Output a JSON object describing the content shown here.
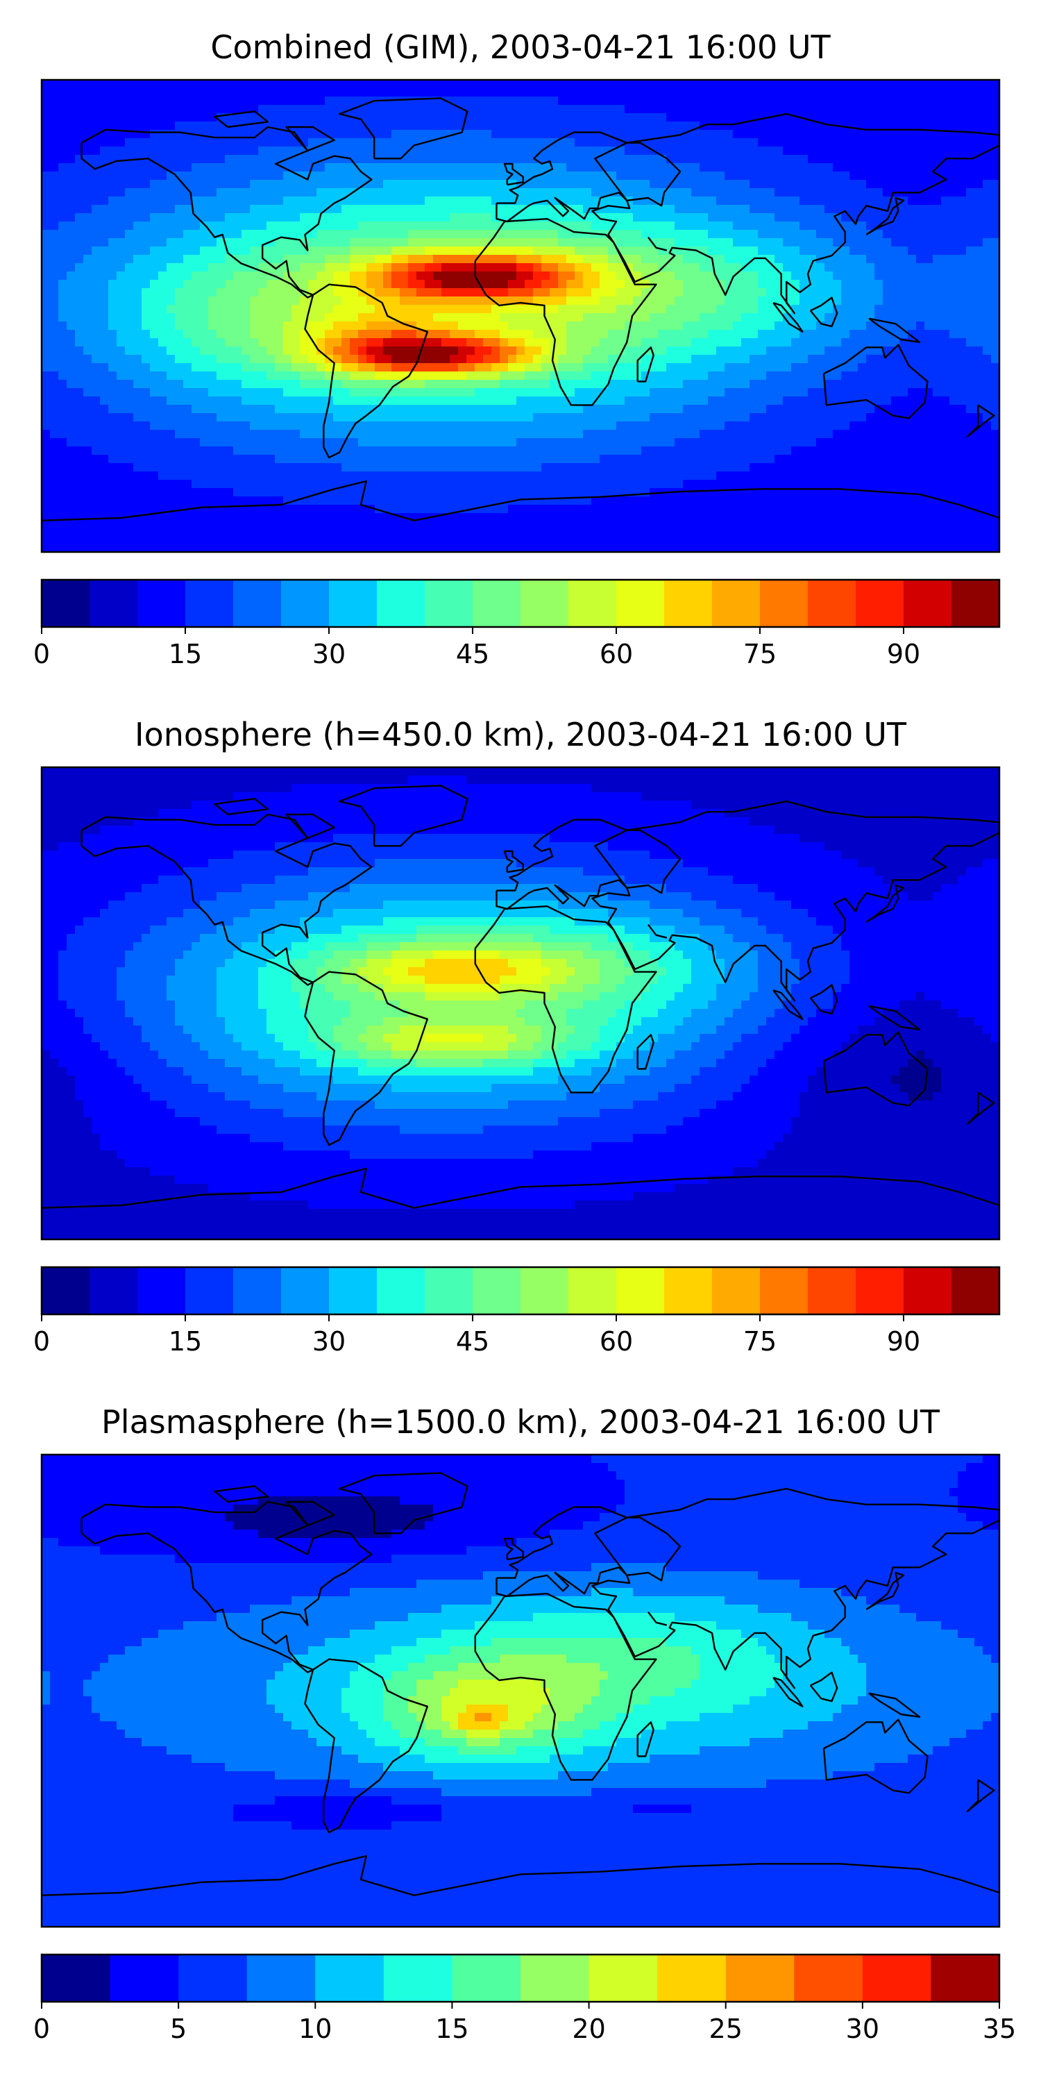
{
  "figure": {
    "panels": [
      {
        "id": "combined",
        "title": "Combined (GIM), 2003-04-21 16:00 UT",
        "colorbar": {
          "min": 0,
          "max": 100,
          "step": 5,
          "ticks": [
            0,
            15,
            30,
            45,
            60,
            75,
            90
          ]
        },
        "blobs": [
          {
            "lon": -30,
            "lat": 5,
            "rlon": 130,
            "rlat": 55,
            "v": 40
          },
          {
            "lon": -18,
            "lat": 15,
            "rlon": 40,
            "rlat": 9,
            "v": 48
          },
          {
            "lon": -30,
            "lat": -15,
            "rlon": 38,
            "rlat": 8,
            "v": 45
          },
          {
            "lon": -55,
            "lat": -10,
            "rlon": 30,
            "rlat": 14,
            "v": 18
          },
          {
            "lon": 60,
            "lat": 10,
            "rlon": 90,
            "rlat": 25,
            "v": 15
          },
          {
            "lon": -110,
            "lat": 0,
            "rlon": 45,
            "rlat": 25,
            "v": 10
          }
        ],
        "base": 10
      },
      {
        "id": "ionosphere",
        "title": "Ionosphere  (h=450.0 km), 2003-04-21 16:00 UT",
        "colorbar": {
          "min": 0,
          "max": 100,
          "step": 5,
          "ticks": [
            0,
            15,
            30,
            45,
            60,
            75,
            90
          ]
        },
        "blobs": [
          {
            "lon": -30,
            "lat": 3,
            "rlon": 115,
            "rlat": 48,
            "v": 38
          },
          {
            "lon": -25,
            "lat": 13,
            "rlon": 45,
            "rlat": 10,
            "v": 22
          },
          {
            "lon": -25,
            "lat": -15,
            "rlon": 45,
            "rlat": 9,
            "v": 20
          },
          {
            "lon": 40,
            "lat": 15,
            "rlon": 60,
            "rlat": 20,
            "v": 10
          },
          {
            "lon": 150,
            "lat": -25,
            "rlon": 60,
            "rlat": 25,
            "v": -6
          }
        ],
        "base": 8
      },
      {
        "id": "plasmasphere",
        "title": "Plasmasphere (h=1500.0 km), 2003-04-21 16:00 UT",
        "colorbar": {
          "min": 0,
          "max": 35,
          "step": 2.5,
          "ticks": [
            0,
            5,
            10,
            15,
            20,
            25,
            30,
            35
          ]
        },
        "blobs": [
          {
            "lon": 10,
            "lat": 0,
            "rlon": 170,
            "rlat": 40,
            "v": 7
          },
          {
            "lon": -15,
            "lat": -8,
            "rlon": 40,
            "rlat": 20,
            "v": 9
          },
          {
            "lon": -15,
            "lat": -12,
            "rlon": 10,
            "rlat": 5,
            "v": 5
          },
          {
            "lon": 40,
            "lat": 15,
            "rlon": 70,
            "rlat": 25,
            "v": 5
          },
          {
            "lon": -70,
            "lat": 65,
            "rlon": 70,
            "rlat": 15,
            "v": -4
          },
          {
            "lon": -60,
            "lat": -45,
            "rlon": 50,
            "rlat": 7,
            "v": -3
          },
          {
            "lon": 50,
            "lat": -45,
            "rlon": 40,
            "rlat": 6,
            "v": -2
          }
        ],
        "base": 5
      }
    ],
    "colormap": [
      "#00008f",
      "#0000c8",
      "#0000ff",
      "#0032ff",
      "#0064ff",
      "#0096ff",
      "#00c8ff",
      "#1effe0",
      "#46ffb4",
      "#6eff8c",
      "#96ff64",
      "#c8ff32",
      "#e6ff14",
      "#ffd200",
      "#ffaa00",
      "#ff7800",
      "#ff4600",
      "#ff1e00",
      "#d20000",
      "#8f0000"
    ],
    "plasmasphere_colormap": [
      "#00008f",
      "#0000ff",
      "#0032ff",
      "#0078ff",
      "#00c8ff",
      "#1effe0",
      "#50ffa0",
      "#96ff64",
      "#d2ff28",
      "#ffd200",
      "#ff9600",
      "#ff5000",
      "#ff1e00",
      "#a00000"
    ],
    "coastline_color": "#000000"
  }
}
